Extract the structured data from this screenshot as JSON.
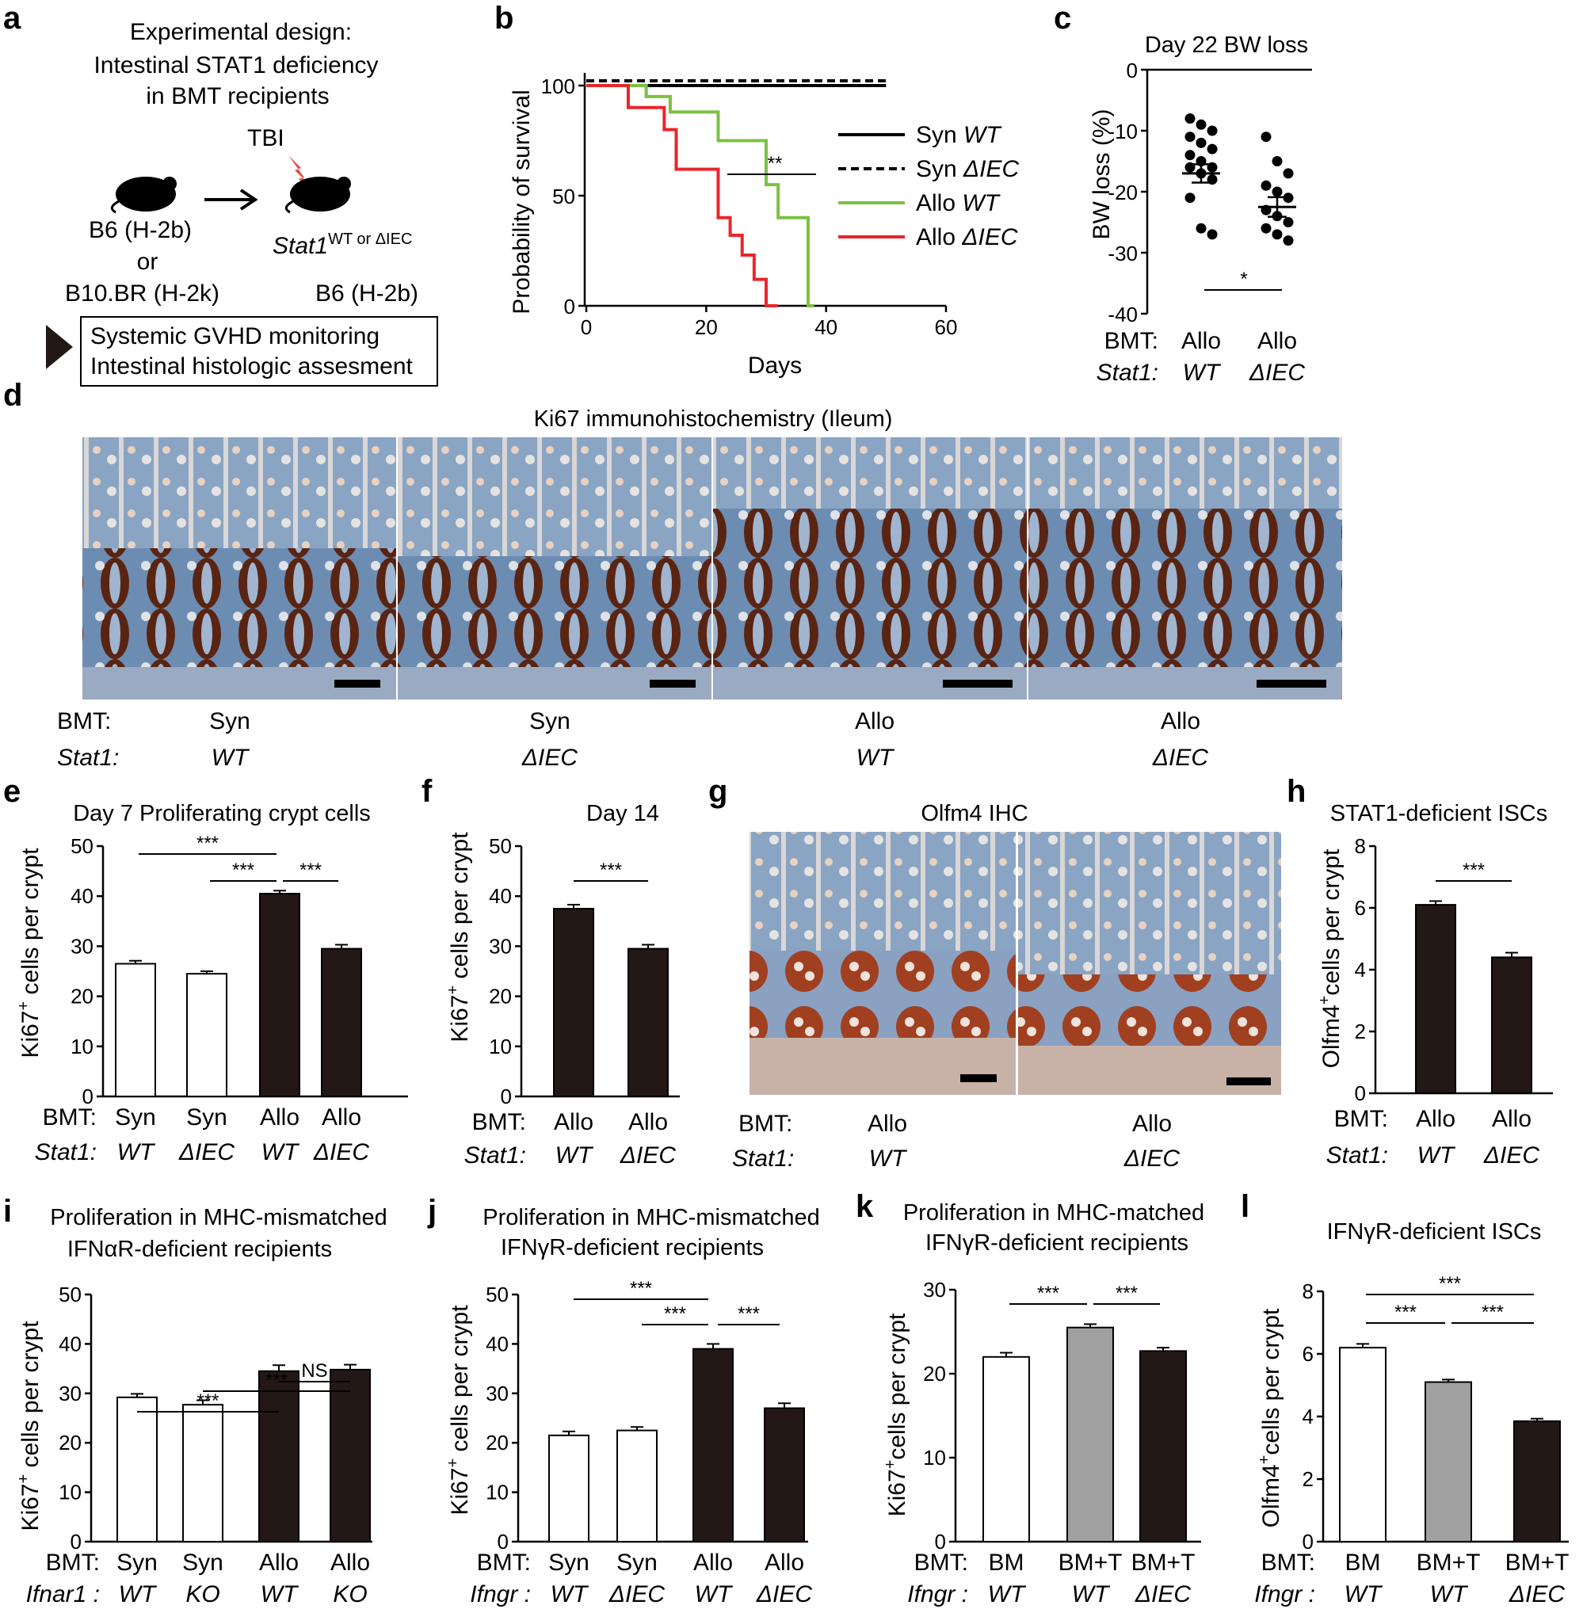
{
  "panels": {
    "a": {
      "letter": "a",
      "title_lines": [
        "Experimental design:",
        "Intestinal STAT1 deficiency",
        "in BMT recipients"
      ],
      "tbi": "TBI",
      "donor_1": "B6 (H-2b)",
      "or": "or",
      "donor_2": "B10.BR (H-2k)",
      "recipient_gene": "Stat1",
      "recipient_sup": "WT or ΔIEC",
      "recipient_strain": "B6 (H-2b)",
      "box_lines": [
        "Systemic GVHD monitoring",
        "Intestinal histologic assesment"
      ]
    },
    "b": {
      "letter": "b"
    },
    "c": {
      "letter": "c"
    },
    "d": {
      "letter": "d",
      "title": "Ki67 immunohistochemistry (Ileum)",
      "row_labels": [
        "BMT:",
        "Stat1:"
      ],
      "images": [
        {
          "bmt": "Syn",
          "stat1": "WT"
        },
        {
          "bmt": "Syn",
          "stat1": "ΔIEC"
        },
        {
          "bmt": "Allo",
          "stat1": "WT"
        },
        {
          "bmt": "Allo",
          "stat1": "ΔIEC"
        }
      ]
    },
    "e": {
      "letter": "e"
    },
    "f": {
      "letter": "f"
    },
    "g": {
      "letter": "g",
      "title": "Olfm4 IHC",
      "row_labels": [
        "BMT:",
        "Stat1:"
      ],
      "images": [
        {
          "bmt": "Allo",
          "stat1": "WT"
        },
        {
          "bmt": "Allo",
          "stat1": "ΔIEC"
        }
      ]
    },
    "h": {
      "letter": "h"
    },
    "i": {
      "letter": "i"
    },
    "j": {
      "letter": "j"
    },
    "k": {
      "letter": "k"
    },
    "l": {
      "letter": "l"
    }
  },
  "colors": {
    "black": "#231815",
    "gray": "#a0a0a0",
    "green": "#7cc142",
    "red": "#e8262c"
  },
  "chart_data": [
    {
      "panel": "b",
      "type": "line",
      "ylabel": "Probability of survival",
      "xlabel": "Days",
      "xlim": [
        0,
        60
      ],
      "ylim": [
        0,
        100
      ],
      "xticks": [
        0,
        20,
        40,
        60
      ],
      "yticks": [
        0,
        50,
        100
      ],
      "significance": "**",
      "series": [
        {
          "name": "Syn",
          "name_italic": "WT",
          "style": "solid",
          "color": "#000000",
          "x": [
            0,
            50
          ],
          "y": [
            100,
            100
          ]
        },
        {
          "name": "Syn",
          "name_italic": "ΔIEC",
          "style": "dashed",
          "color": "#000000",
          "x": [
            0,
            50
          ],
          "y": [
            100,
            100
          ]
        },
        {
          "name": "Allo",
          "name_italic": "WT",
          "style": "solid",
          "color": "#7cc142",
          "x": [
            0,
            10,
            14,
            22,
            30,
            32,
            37,
            38
          ],
          "y": [
            100,
            95,
            88,
            75,
            55,
            40,
            0,
            0
          ]
        },
        {
          "name": "Allo",
          "name_italic": "ΔIEC",
          "style": "solid",
          "color": "#e8262c",
          "x": [
            0,
            7,
            13,
            15,
            22,
            24,
            26,
            28,
            30,
            32
          ],
          "y": [
            100,
            90,
            80,
            62,
            40,
            32,
            23,
            12,
            0,
            0
          ]
        }
      ]
    },
    {
      "panel": "c",
      "type": "scatter",
      "title": "Day 22 BW loss",
      "ylabel": "BW loss (%)",
      "ylim": [
        -40,
        0
      ],
      "yticks": [
        0,
        -10,
        -20,
        -30,
        -40
      ],
      "row_labels": [
        "BMT:",
        "Stat1:"
      ],
      "categories": [
        {
          "bmt": "Allo",
          "stat1": "WT"
        },
        {
          "bmt": "Allo",
          "stat1": "ΔIEC"
        }
      ],
      "series": [
        {
          "points": [
            -8,
            -9,
            -10,
            -11,
            -12,
            -13,
            -14,
            -15,
            -16,
            -16,
            -17,
            -18,
            -21,
            -26,
            -27
          ],
          "mean": -17,
          "sem": 1.5
        },
        {
          "points": [
            -11,
            -15,
            -17,
            -19,
            -20,
            -21,
            -23,
            -24,
            -25,
            -26,
            -27,
            -28
          ],
          "mean": -22.5,
          "sem": 1.6
        }
      ],
      "significance": [
        {
          "between": [
            0,
            1
          ],
          "label": "*"
        }
      ]
    },
    {
      "panel": "e",
      "type": "bar",
      "title": "Day 7 Proliferating crypt cells",
      "ylabel": "Ki67+ cells per crypt",
      "ylim": [
        0,
        50
      ],
      "yticks": [
        0,
        10,
        20,
        30,
        40,
        50
      ],
      "row_labels": [
        "BMT:",
        "Stat1:"
      ],
      "categories": [
        {
          "bmt": "Syn",
          "geno": "WT"
        },
        {
          "bmt": "Syn",
          "geno": "ΔIEC"
        },
        {
          "bmt": "Allo",
          "geno": "WT"
        },
        {
          "bmt": "Allo",
          "geno": "ΔIEC"
        }
      ],
      "values": [
        26.5,
        24.5,
        40.5,
        29.5
      ],
      "errors": [
        0.6,
        0.5,
        0.6,
        0.8
      ],
      "fills": [
        "white",
        "white",
        "black",
        "black"
      ],
      "significance": [
        {
          "between": [
            0,
            2
          ],
          "label": "***"
        },
        {
          "between": [
            1,
            2
          ],
          "label": "***"
        },
        {
          "between": [
            2,
            3
          ],
          "label": "***"
        }
      ]
    },
    {
      "panel": "f",
      "type": "bar",
      "title": "Day 14",
      "ylabel": "Ki67+ cells per crypt",
      "ylim": [
        0,
        50
      ],
      "yticks": [
        0,
        10,
        20,
        30,
        40,
        50
      ],
      "row_labels": [
        "BMT:",
        "Stat1:"
      ],
      "categories": [
        {
          "bmt": "Allo",
          "geno": "WT"
        },
        {
          "bmt": "Allo",
          "geno": "ΔIEC"
        }
      ],
      "values": [
        37.5,
        29.5
      ],
      "errors": [
        0.8,
        0.8
      ],
      "fills": [
        "black",
        "black"
      ],
      "significance": [
        {
          "between": [
            0,
            1
          ],
          "label": "***"
        }
      ]
    },
    {
      "panel": "h",
      "type": "bar",
      "title": "STAT1-deficient ISCs",
      "ylabel": "Olfm4+ cells per crypt",
      "ylim": [
        0,
        8
      ],
      "yticks": [
        0,
        2,
        4,
        6,
        8
      ],
      "row_labels": [
        "BMT:",
        "Stat1:"
      ],
      "categories": [
        {
          "bmt": "Allo",
          "geno": "WT"
        },
        {
          "bmt": "Allo",
          "geno": "ΔIEC"
        }
      ],
      "values": [
        6.1,
        4.4
      ],
      "errors": [
        0.12,
        0.15
      ],
      "fills": [
        "black",
        "black"
      ],
      "significance": [
        {
          "between": [
            0,
            1
          ],
          "label": "***"
        }
      ]
    },
    {
      "panel": "i",
      "type": "bar",
      "title": "Proliferation in MHC-mismatched IFNαR-deficient recipients",
      "title_lines": [
        "Proliferation in MHC-mismatched",
        "IFNαR-deficient recipients"
      ],
      "ylabel": "Ki67+ cells per crypt",
      "ylim": [
        0,
        50
      ],
      "yticks": [
        0,
        10,
        20,
        30,
        40,
        50
      ],
      "row_labels": [
        "BMT:",
        "Ifnar1 :"
      ],
      "categories": [
        {
          "bmt": "Syn",
          "geno": "WT"
        },
        {
          "bmt": "Syn",
          "geno": "KO"
        },
        {
          "bmt": "Allo",
          "geno": "WT"
        },
        {
          "bmt": "Allo",
          "geno": "KO"
        }
      ],
      "values": [
        29.2,
        27.7,
        34.5,
        34.8
      ],
      "errors": [
        0.7,
        0.9,
        1.2,
        1.0
      ],
      "fills": [
        "white",
        "white",
        "black",
        "black"
      ],
      "significance": [
        {
          "between": [
            0,
            2
          ],
          "label": "***"
        },
        {
          "between": [
            1,
            3
          ],
          "label": "***"
        },
        {
          "between": [
            2,
            3
          ],
          "label": "NS"
        }
      ]
    },
    {
      "panel": "j",
      "type": "bar",
      "title": "Proliferation in MHC-mismatched IFNγR-deficient recipients",
      "title_lines": [
        "Proliferation in MHC-mismatched",
        "IFNγR-deficient recipients"
      ],
      "ylabel": "Ki67+ cells per crypt",
      "ylim": [
        0,
        50
      ],
      "yticks": [
        0,
        10,
        20,
        30,
        40,
        50
      ],
      "row_labels": [
        "BMT:",
        "Ifngr :"
      ],
      "categories": [
        {
          "bmt": "Syn",
          "geno": "WT"
        },
        {
          "bmt": "Syn",
          "geno": "ΔIEC"
        },
        {
          "bmt": "Allo",
          "geno": "WT"
        },
        {
          "bmt": "Allo",
          "geno": "ΔIEC"
        }
      ],
      "values": [
        21.5,
        22.5,
        39.0,
        27.0
      ],
      "errors": [
        0.8,
        0.7,
        1.0,
        1.0
      ],
      "fills": [
        "white",
        "white",
        "black",
        "black"
      ],
      "significance": [
        {
          "between": [
            0,
            2
          ],
          "label": "***"
        },
        {
          "between": [
            1,
            2
          ],
          "label": "***"
        },
        {
          "between": [
            2,
            3
          ],
          "label": "***"
        }
      ]
    },
    {
      "panel": "k",
      "type": "bar",
      "title": "Proliferation in MHC-matched IFNγR-deficient recipients",
      "title_lines": [
        "Proliferation in MHC-matched",
        "IFNγR-deficient recipients"
      ],
      "ylabel": "Ki67+ cells per crypt",
      "ylim": [
        0,
        30
      ],
      "yticks": [
        0,
        10,
        20,
        30
      ],
      "row_labels": [
        "BMT:",
        "Ifngr :"
      ],
      "categories": [
        {
          "bmt": "BM",
          "geno": "WT"
        },
        {
          "bmt": "BM+T",
          "geno": "WT"
        },
        {
          "bmt": "BM+T",
          "geno": "ΔIEC"
        }
      ],
      "values": [
        22.0,
        25.5,
        22.7
      ],
      "errors": [
        0.5,
        0.4,
        0.4
      ],
      "fills": [
        "white",
        "gray",
        "black"
      ],
      "significance": [
        {
          "between": [
            0,
            1
          ],
          "label": "***"
        },
        {
          "between": [
            1,
            2
          ],
          "label": "***"
        }
      ]
    },
    {
      "panel": "l",
      "type": "bar",
      "title": "IFNγR-deficient ISCs",
      "ylabel": "Olfm4+ cells per crypt",
      "ylim": [
        0,
        8
      ],
      "yticks": [
        0,
        2,
        4,
        6,
        8
      ],
      "row_labels": [
        "BMT:",
        "Ifngr :"
      ],
      "categories": [
        {
          "bmt": "BM",
          "geno": "WT"
        },
        {
          "bmt": "BM+T",
          "geno": "WT"
        },
        {
          "bmt": "BM+T",
          "geno": "ΔIEC"
        }
      ],
      "values": [
        6.2,
        5.1,
        3.85
      ],
      "errors": [
        0.12,
        0.08,
        0.08
      ],
      "fills": [
        "white",
        "gray",
        "black"
      ],
      "significance": [
        {
          "between": [
            0,
            2
          ],
          "label": "***"
        },
        {
          "between": [
            0,
            1
          ],
          "label": "***"
        },
        {
          "between": [
            1,
            2
          ],
          "label": "***"
        }
      ]
    }
  ]
}
